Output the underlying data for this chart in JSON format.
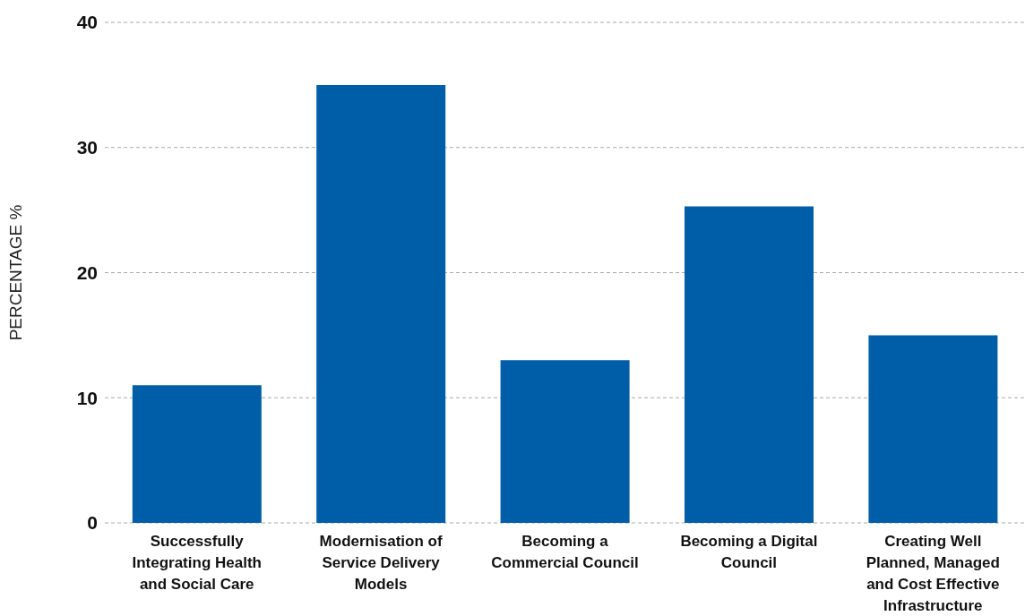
{
  "chart_data": {
    "type": "bar",
    "ylabel": "PERCENTAGE %",
    "categories": [
      "Successfully Integrating Health and Social Care",
      "Modernisation of Service Delivery Models",
      "Becoming a Commercial Council",
      "Becoming a Digital Council",
      "Creating Well Planned, Managed and Cost Effective Infrastructure"
    ],
    "values": [
      11,
      35,
      13,
      25.3,
      15
    ],
    "color": "#005ea8",
    "ylim": [
      0,
      40
    ],
    "yticks": [
      0,
      10,
      20,
      30,
      40
    ],
    "grid": "y"
  }
}
